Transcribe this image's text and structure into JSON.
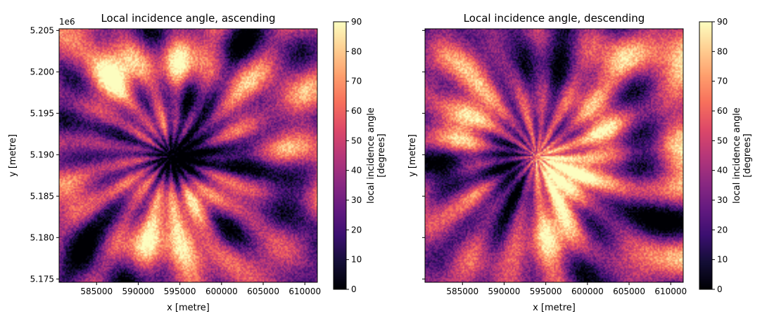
{
  "chart_data": [
    {
      "type": "heatmap",
      "title": "Local incidence angle, ascending",
      "xlabel": "x [metre]",
      "ylabel": "y [metre]",
      "xlim": [
        580500,
        611500
      ],
      "ylim": [
        5174600,
        5205200
      ],
      "xticks": [
        585000,
        590000,
        595000,
        600000,
        605000,
        610000
      ],
      "xtick_labels": [
        "585000",
        "590000",
        "595000",
        "600000",
        "605000",
        "610000"
      ],
      "yticks": [
        5175000,
        5180000,
        5185000,
        5190000,
        5195000,
        5200000,
        5205000
      ],
      "ytick_labels": [
        "5.175",
        "5.180",
        "5.185",
        "5.190",
        "5.195",
        "5.200",
        "5.205"
      ],
      "y_offset_label": "1e6",
      "colormap": "magma",
      "colorbar_label": [
        "local incidence angle",
        "[degrees]"
      ],
      "colorbar_range": [
        0,
        90
      ],
      "colorbar_ticks": [
        0,
        10,
        20,
        30,
        40,
        50,
        60,
        70,
        80,
        90
      ],
      "texture_seed": 7
    },
    {
      "type": "heatmap",
      "title": "Local incidence angle, descending",
      "xlabel": "x [metre]",
      "ylabel": "y [metre]",
      "xlim": [
        580500,
        611500
      ],
      "ylim": [
        5174600,
        5205200
      ],
      "xticks": [
        585000,
        590000,
        595000,
        600000,
        605000,
        610000
      ],
      "xtick_labels": [
        "585000",
        "590000",
        "595000",
        "600000",
        "605000",
        "610000"
      ],
      "yticks": [
        5175000,
        5180000,
        5185000,
        5190000,
        5195000,
        5200000,
        5205000
      ],
      "ytick_labels": [],
      "y_offset_label": "",
      "colormap": "magma",
      "colorbar_label": [
        "local incidence angle",
        "[degrees]"
      ],
      "colorbar_range": [
        0,
        90
      ],
      "colorbar_ticks": [
        0,
        10,
        20,
        30,
        40,
        50,
        60,
        70,
        80,
        90
      ],
      "texture_seed": 13
    }
  ]
}
